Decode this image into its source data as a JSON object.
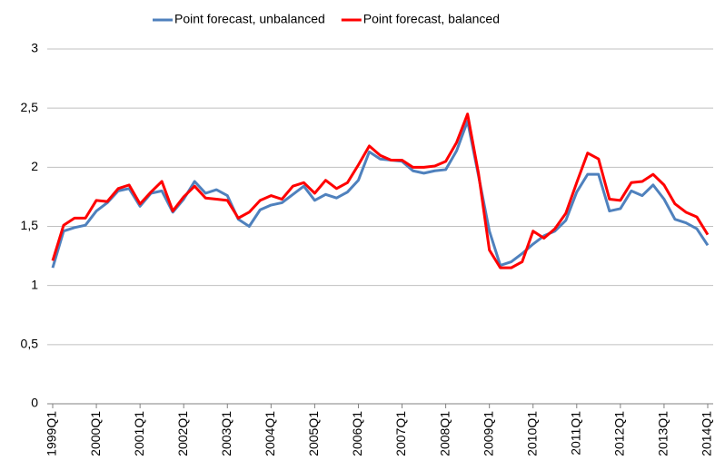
{
  "chart_data": {
    "type": "line",
    "categories": [
      "1999Q1",
      null,
      null,
      null,
      "2000Q1",
      null,
      null,
      null,
      "2001Q1",
      null,
      null,
      null,
      "2002Q1",
      null,
      null,
      null,
      "2003Q1",
      null,
      null,
      null,
      "2004Q1",
      null,
      null,
      null,
      "2005Q1",
      null,
      null,
      null,
      "2006Q1",
      null,
      null,
      null,
      "2007Q1",
      null,
      null,
      null,
      "2008Q1",
      null,
      null,
      null,
      "2009Q1",
      null,
      null,
      null,
      "2010Q1",
      null,
      null,
      null,
      "2011Q1",
      null,
      null,
      null,
      "2012Q1",
      null,
      null,
      null,
      "2013Q1",
      null,
      null,
      null,
      "2014Q1"
    ],
    "series": [
      {
        "name": "Point forecast, unbalanced",
        "color": "#4f81bd",
        "values": [
          1.15,
          1.46,
          1.49,
          1.51,
          1.63,
          1.7,
          1.8,
          1.82,
          1.67,
          1.78,
          1.8,
          1.62,
          1.73,
          1.88,
          1.78,
          1.81,
          1.76,
          1.56,
          1.5,
          1.64,
          1.68,
          1.7,
          1.77,
          1.84,
          1.72,
          1.77,
          1.74,
          1.79,
          1.89,
          2.13,
          2.07,
          2.06,
          2.05,
          1.97,
          1.95,
          1.97,
          1.98,
          2.14,
          2.39,
          1.93,
          1.46,
          1.17,
          1.2,
          1.27,
          1.35,
          1.42,
          1.46,
          1.55,
          1.79,
          1.94,
          1.94,
          1.63,
          1.65,
          1.8,
          1.76,
          1.85,
          1.73,
          1.56,
          1.53,
          1.48,
          1.34
        ]
      },
      {
        "name": "Point forecast, balanced",
        "color": "#ff0000",
        "values": [
          1.21,
          1.51,
          1.57,
          1.57,
          1.72,
          1.71,
          1.82,
          1.85,
          1.69,
          1.79,
          1.88,
          1.63,
          1.75,
          1.84,
          1.74,
          1.73,
          1.72,
          1.57,
          1.62,
          1.72,
          1.76,
          1.73,
          1.84,
          1.87,
          1.78,
          1.89,
          1.82,
          1.87,
          2.02,
          2.18,
          2.1,
          2.06,
          2.06,
          2.0,
          2.0,
          2.01,
          2.05,
          2.21,
          2.45,
          1.95,
          1.3,
          1.15,
          1.15,
          1.2,
          1.46,
          1.4,
          1.48,
          1.61,
          1.87,
          2.12,
          2.07,
          1.73,
          1.72,
          1.87,
          1.88,
          1.94,
          1.85,
          1.69,
          1.62,
          1.58,
          1.43
        ]
      }
    ],
    "ylim": [
      0,
      3
    ],
    "yticks": [
      0,
      {
        "value": 0.5,
        "label": "0,5"
      },
      1,
      {
        "value": 1.5,
        "label": "1,5"
      },
      2,
      {
        "value": 2.5,
        "label": "2,5"
      },
      3
    ],
    "grid": true,
    "legend": "top"
  }
}
